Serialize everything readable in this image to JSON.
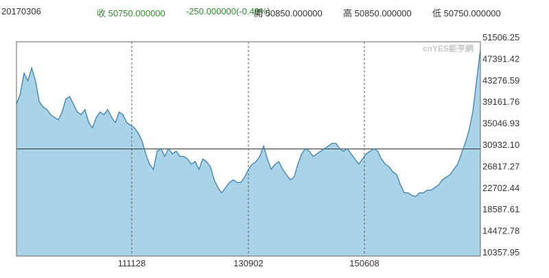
{
  "header": {
    "date": "20170306",
    "close": "收 50750.000000",
    "change": "-250.000000(-0.49%)",
    "open": "開 50850.000000",
    "high": "高 50850.000000",
    "low": "低 50750.000000"
  },
  "watermark": "cnYES鉅亨網",
  "colors": {
    "up": "#2e8b2e",
    "line": "#3b7fb0",
    "fill": "#a9d4e8",
    "border": "#666666",
    "grid": "#555555"
  },
  "chart_data": {
    "type": "area",
    "title": "",
    "xlabel": "",
    "ylabel": "",
    "y_ticks": [
      "51506.25",
      "47391.42",
      "43276.59",
      "39161.76",
      "35046.93",
      "30932.10",
      "26817.27",
      "22702.44",
      "18587.61",
      "14472.78",
      "10357.95"
    ],
    "ylim": [
      10357.95,
      51506.25
    ],
    "x_ticks": [
      "111128",
      "130902",
      "150608"
    ],
    "reference_line": 30932.1,
    "grid": "vertical dashed at x ticks",
    "series": [
      {
        "values": [
          39500,
          41500,
          45500,
          44000,
          46500,
          44000,
          40000,
          39000,
          38500,
          37500,
          37000,
          36500,
          38000,
          40500,
          41000,
          39500,
          38000,
          37500,
          38500,
          36000,
          35000,
          37000,
          38000,
          37500,
          38500,
          37000,
          36000,
          38000,
          37500,
          36000,
          35500,
          35000,
          34000,
          32500,
          30000,
          28000,
          27000,
          30500,
          31000,
          29500,
          31000,
          30000,
          30500,
          29500,
          29500,
          29000,
          28000,
          28500,
          27000,
          29000,
          28500,
          27500,
          25000,
          23500,
          22500,
          23500,
          24500,
          25000,
          24500,
          24500,
          25500,
          27000,
          28000,
          28500,
          29500,
          31500,
          29000,
          27000,
          28000,
          28500,
          27000,
          26000,
          25000,
          25500,
          28000,
          30000,
          31000,
          30500,
          29500,
          30000,
          30500,
          31000,
          31500,
          32000,
          32000,
          31000,
          30500,
          31000,
          30000,
          29000,
          28000,
          29000,
          30000,
          30500,
          31000,
          30500,
          29000,
          28000,
          27500,
          26500,
          26000,
          24000,
          22500,
          22500,
          22000,
          21800,
          22500,
          22500,
          23000,
          23000,
          23500,
          24000,
          25000,
          25500,
          26000,
          27000,
          28000,
          30000,
          32000,
          34500,
          38000,
          44000,
          50000
        ]
      }
    ]
  }
}
